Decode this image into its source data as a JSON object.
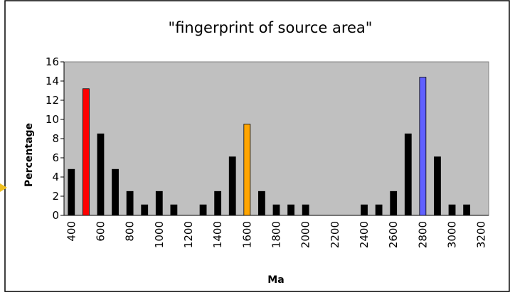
{
  "chart_data": {
    "type": "bar",
    "title": "\"fingerprint of source area\"",
    "x_label": "Ma",
    "y_label": "Percentage",
    "categories": [
      400,
      null,
      600,
      null,
      800,
      null,
      1000,
      null,
      1200,
      null,
      1400,
      null,
      1600,
      null,
      1800,
      null,
      2000,
      null,
      2200,
      null,
      2400,
      null,
      2600,
      null,
      2800,
      null,
      3000,
      null,
      3200
    ],
    "values": [
      4.8,
      13.2,
      8.5,
      4.8,
      2.5,
      1.1,
      2.5,
      1.1,
      0,
      1.1,
      2.5,
      6.1,
      9.5,
      2.5,
      1.1,
      1.1,
      1.1,
      0,
      0,
      0,
      1.1,
      1.1,
      2.5,
      8.5,
      14.4,
      6.1,
      1.1,
      1.1,
      0
    ],
    "colors": [
      "#000000",
      "#ff0000",
      "#000000",
      "#000000",
      "#000000",
      "#000000",
      "#000000",
      "#000000",
      "#000000",
      "#000000",
      "#000000",
      "#000000",
      "#ffa500",
      "#000000",
      "#000000",
      "#000000",
      "#000000",
      "#000000",
      "#000000",
      "#000000",
      "#000000",
      "#000000",
      "#000000",
      "#000000",
      "#6060ff",
      "#000000",
      "#000000",
      "#000000",
      "#000000"
    ],
    "ylim": [
      0,
      16
    ],
    "yticks": [
      0,
      2,
      4,
      6,
      8,
      10,
      12,
      14,
      16
    ],
    "plot_background": "#c0c0c0"
  }
}
